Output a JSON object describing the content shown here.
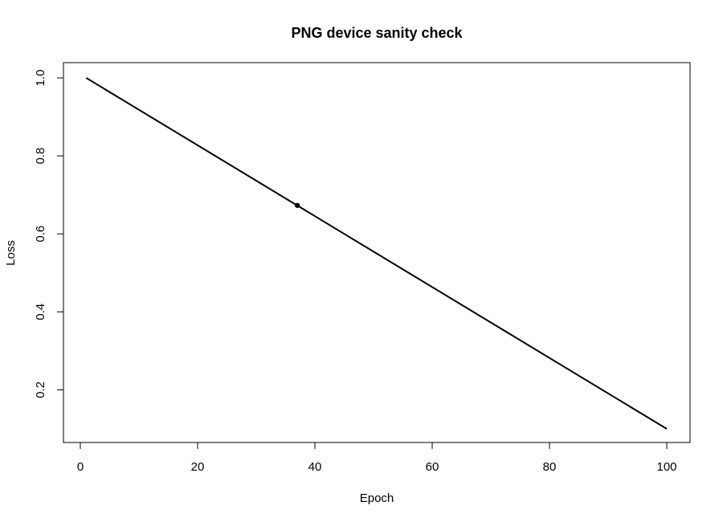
{
  "chart_data": {
    "type": "line",
    "title": "PNG device sanity check",
    "xlabel": "Epoch",
    "ylabel": "Loss",
    "xlim": [
      1,
      100
    ],
    "ylim": [
      0.1,
      1.0
    ],
    "x_ticks": [
      0,
      20,
      40,
      60,
      80,
      100
    ],
    "y_ticks": [
      0.2,
      0.4,
      0.6,
      0.8,
      1.0
    ],
    "x_tick_labels": [
      "0",
      "20",
      "40",
      "60",
      "80",
      "100"
    ],
    "y_tick_labels": [
      "0.2",
      "0.4",
      "0.6",
      "0.8",
      "1.0"
    ],
    "series": [
      {
        "x": [
          1,
          100
        ],
        "y": [
          1.0,
          0.1
        ],
        "color": "#000000"
      }
    ],
    "highlight_point": {
      "x": 37,
      "y": 0.673
    },
    "grid": false,
    "legend": "none"
  }
}
